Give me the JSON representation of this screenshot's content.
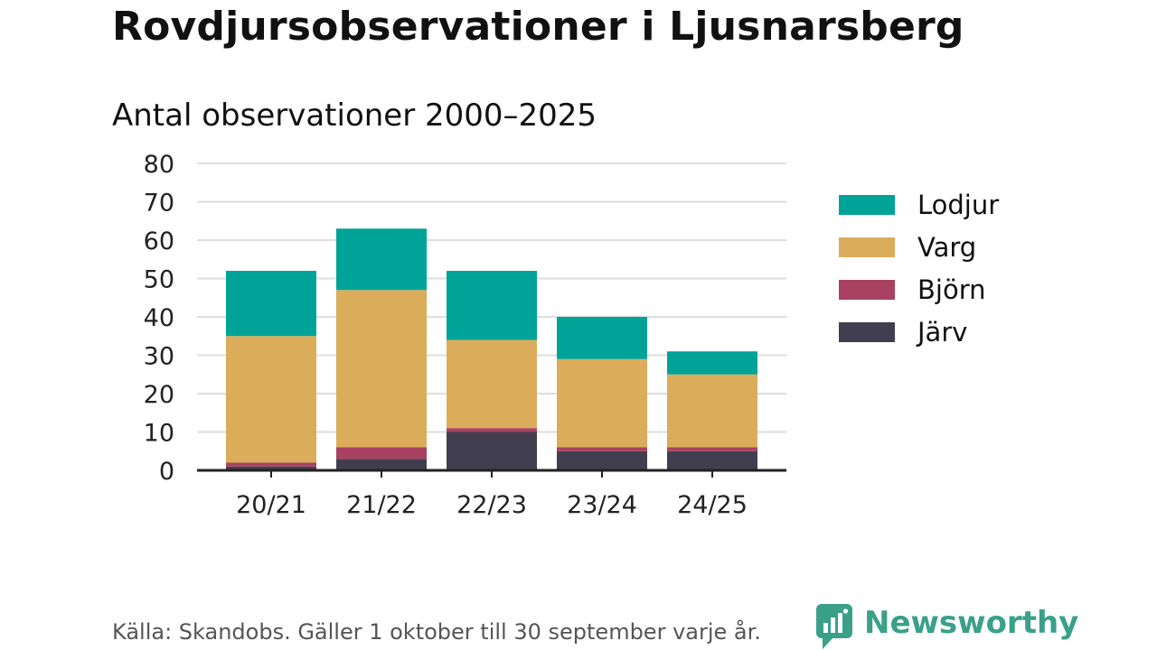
{
  "header": {
    "title": "Rovdjursobservationer i Ljusnarsberg",
    "subtitle": "Antal observationer 2000–2025"
  },
  "footer": {
    "source": "Källa: Skandobs. Gäller 1 oktober till 30 september varje år.",
    "brand": "Newsworthy"
  },
  "colors": {
    "Lodjur": "#00a398",
    "Varg": "#dbad5a",
    "Björn": "#a94262",
    "Järv": "#413f4f",
    "grid": "#dedede",
    "axis": "#222222",
    "brand": "#3aa08a"
  },
  "chart_data": {
    "type": "bar",
    "stacked": true,
    "title": "Antal observationer 2000–2025",
    "xlabel": "",
    "ylabel": "",
    "ylim": [
      0,
      80
    ],
    "yticks": [
      0,
      10,
      20,
      30,
      40,
      50,
      60,
      70,
      80
    ],
    "grid": true,
    "legend_position": "right",
    "categories": [
      "20/21",
      "21/22",
      "22/23",
      "23/24",
      "24/25"
    ],
    "series": [
      {
        "name": "Järv",
        "values": [
          1,
          3,
          10,
          5,
          5
        ]
      },
      {
        "name": "Björn",
        "values": [
          1,
          3,
          1,
          1,
          1
        ]
      },
      {
        "name": "Varg",
        "values": [
          33,
          41,
          23,
          23,
          19
        ]
      },
      {
        "name": "Lodjur",
        "values": [
          17,
          16,
          18,
          11,
          6
        ]
      }
    ],
    "legend_order": [
      "Lodjur",
      "Varg",
      "Björn",
      "Järv"
    ]
  }
}
